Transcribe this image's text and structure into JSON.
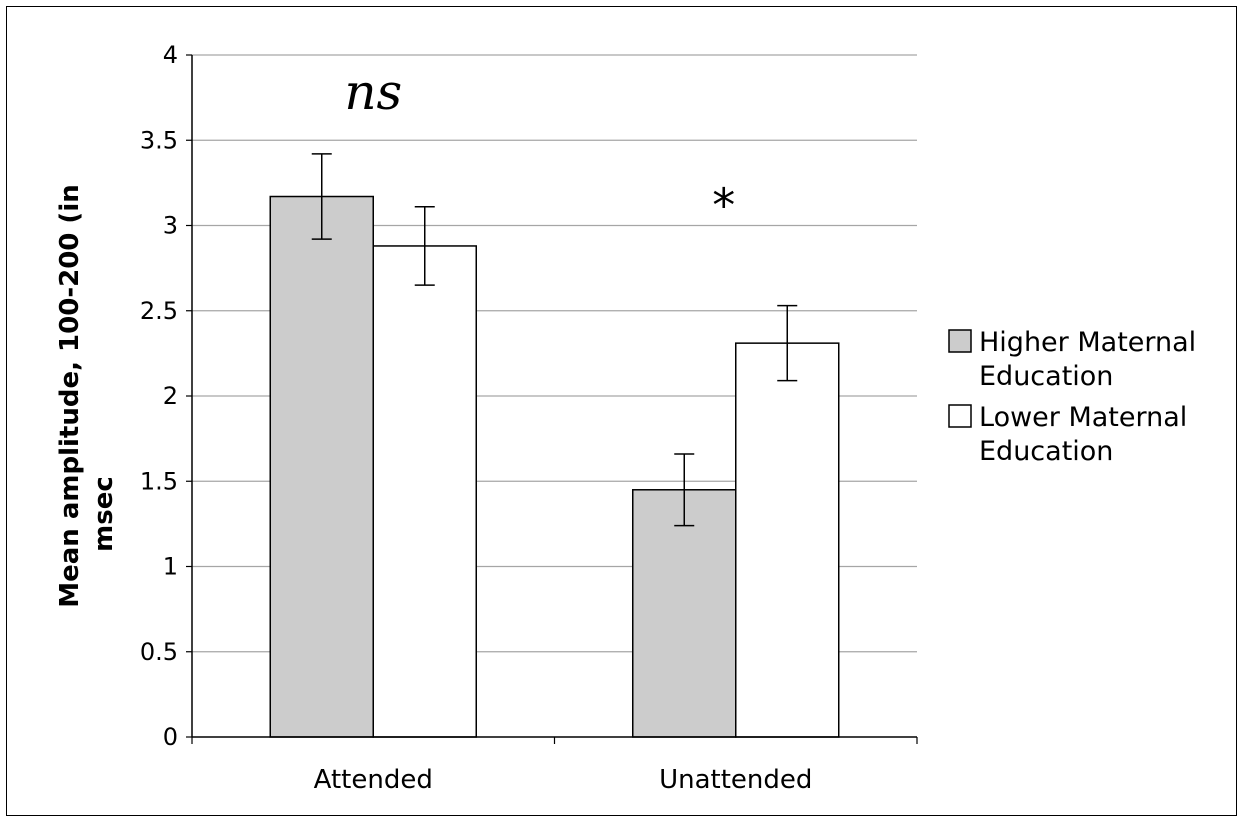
{
  "chart_data": {
    "type": "bar",
    "categories": [
      "Attended",
      "Unattended"
    ],
    "series": [
      {
        "name": "Higher Maternal Education",
        "color": "#cccccc",
        "values": [
          3.17,
          1.45
        ],
        "error_low": [
          2.92,
          1.24
        ],
        "error_high": [
          3.42,
          1.66
        ]
      },
      {
        "name": "Lower Maternal Education",
        "color": "#ffffff",
        "values": [
          2.88,
          2.31
        ],
        "error_low": [
          2.65,
          2.09
        ],
        "error_high": [
          3.11,
          2.53
        ]
      }
    ],
    "ylim": [
      0,
      4
    ],
    "yticks": [
      "0",
      "0.5",
      "1",
      "1.5",
      "2",
      "2.5",
      "3",
      "3.5",
      "4"
    ],
    "ylabel_line1": "Mean amplitude, 100-200 (in",
    "ylabel_line2": "msec",
    "grid": true,
    "legend_position": "right",
    "legend": [
      {
        "lines": [
          "Higher Maternal",
          "Education"
        ]
      },
      {
        "lines": [
          "Lower Maternal",
          "Education"
        ]
      }
    ],
    "annotations": [
      {
        "text": "ns",
        "category": "Attended",
        "y": 3.8
      },
      {
        "text": "*",
        "category": "Unattended",
        "y": 3.2
      }
    ]
  }
}
